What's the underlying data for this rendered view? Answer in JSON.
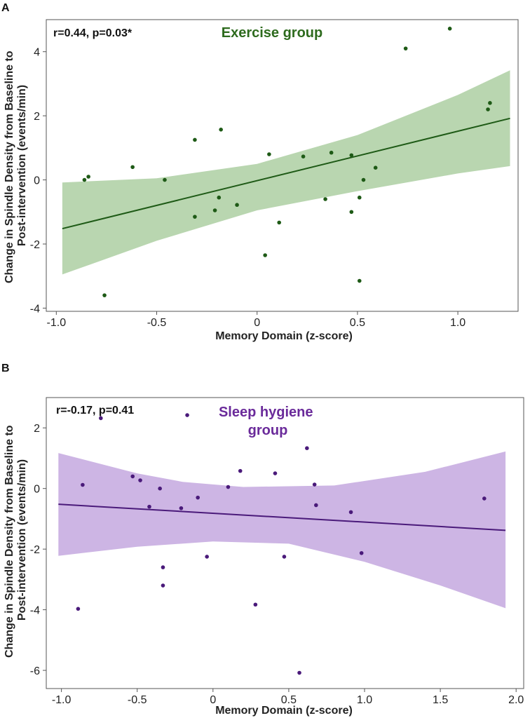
{
  "chart_data": [
    {
      "panel": "A",
      "type": "scatter",
      "title": "Exercise group",
      "stat_text": "r=0.44, p=0.03*",
      "xlabel": "Memory Domain (z-score)",
      "ylabel": "Change in Spindle Density from Baseline to Post-intervention (events/min)",
      "xlim": [
        -1.05,
        1.3
      ],
      "ylim": [
        -4.1,
        5.0
      ],
      "xticks": [
        -1.0,
        -0.5,
        0.0,
        0.5,
        1.0
      ],
      "xtick_labels": [
        "-1.0",
        "-0.5",
        "0",
        "0.5",
        "1.0"
      ],
      "yticks": [
        -4,
        -2,
        0,
        2,
        4
      ],
      "ytick_labels": [
        "-4",
        "-2",
        "0",
        "2",
        "4"
      ],
      "colors": {
        "point": "#1e5a16",
        "line": "#1e5a16",
        "band": "#b9d6b0",
        "title": "#2e6b1e"
      },
      "points": [
        {
          "x": -0.86,
          "y": 0.0
        },
        {
          "x": -0.84,
          "y": 0.1
        },
        {
          "x": -0.76,
          "y": -3.6
        },
        {
          "x": -0.62,
          "y": 0.4
        },
        {
          "x": -0.46,
          "y": 0.0
        },
        {
          "x": -0.31,
          "y": 1.25
        },
        {
          "x": -0.31,
          "y": -1.15
        },
        {
          "x": -0.21,
          "y": -0.95
        },
        {
          "x": -0.19,
          "y": -0.55
        },
        {
          "x": -0.18,
          "y": 1.57
        },
        {
          "x": -0.1,
          "y": -0.78
        },
        {
          "x": 0.04,
          "y": -2.35
        },
        {
          "x": 0.06,
          "y": 0.8
        },
        {
          "x": 0.11,
          "y": -1.33
        },
        {
          "x": 0.23,
          "y": 0.73
        },
        {
          "x": 0.34,
          "y": -0.6
        },
        {
          "x": 0.37,
          "y": 0.85
        },
        {
          "x": 0.47,
          "y": 0.77
        },
        {
          "x": 0.47,
          "y": -1.0
        },
        {
          "x": 0.51,
          "y": -0.55
        },
        {
          "x": 0.51,
          "y": -3.15
        },
        {
          "x": 0.53,
          "y": 0.0
        },
        {
          "x": 0.59,
          "y": 0.38
        },
        {
          "x": 0.74,
          "y": 4.1
        },
        {
          "x": 0.96,
          "y": 4.72
        },
        {
          "x": 1.15,
          "y": 2.2
        },
        {
          "x": 1.16,
          "y": 2.4
        }
      ],
      "fit_line": [
        {
          "x": -0.97,
          "y": -1.52
        },
        {
          "x": 1.26,
          "y": 1.92
        }
      ],
      "ci_upper": [
        {
          "x": -0.97,
          "y": -0.08
        },
        {
          "x": -0.5,
          "y": 0.05
        },
        {
          "x": 0.0,
          "y": 0.5
        },
        {
          "x": 0.5,
          "y": 1.4
        },
        {
          "x": 1.0,
          "y": 2.65
        },
        {
          "x": 1.26,
          "y": 3.42
        }
      ],
      "ci_lower": [
        {
          "x": 1.26,
          "y": 0.43
        },
        {
          "x": 1.0,
          "y": 0.2
        },
        {
          "x": 0.5,
          "y": -0.35
        },
        {
          "x": 0.0,
          "y": -0.95
        },
        {
          "x": -0.5,
          "y": -1.9
        },
        {
          "x": -0.97,
          "y": -2.95
        }
      ]
    },
    {
      "panel": "B",
      "type": "scatter",
      "title": "Sleep hygiene group",
      "title_lines": [
        "Sleep hygiene",
        "group"
      ],
      "stat_text": "r=-0.17, p=0.41",
      "xlabel": "Memory Domain (z-score)",
      "ylabel": "Change in Spindle Density from Baseline to Post-intervention (events/min)",
      "xlim": [
        -1.1,
        2.05
      ],
      "ylim": [
        -6.6,
        3.0
      ],
      "xticks": [
        -1.0,
        -0.5,
        0.0,
        0.5,
        1.0,
        1.5,
        2.0
      ],
      "xtick_labels": [
        "-1.0",
        "-0.5",
        "0",
        "0.5",
        "1.0",
        "1.5",
        "2.0"
      ],
      "yticks": [
        -6,
        -4,
        -2,
        0,
        2
      ],
      "ytick_labels": [
        "-6",
        "-4",
        "-2",
        "0",
        "2"
      ],
      "colors": {
        "point": "#4a1a7a",
        "line": "#4a1a7a",
        "band": "#cdb5e4",
        "title": "#6a2a9a"
      },
      "points": [
        {
          "x": -0.89,
          "y": -3.97
        },
        {
          "x": -0.86,
          "y": 0.12
        },
        {
          "x": -0.74,
          "y": 2.32
        },
        {
          "x": -0.53,
          "y": 0.4
        },
        {
          "x": -0.48,
          "y": 0.27
        },
        {
          "x": -0.42,
          "y": -0.6
        },
        {
          "x": -0.35,
          "y": 0.0
        },
        {
          "x": -0.33,
          "y": -2.6
        },
        {
          "x": -0.33,
          "y": -3.2
        },
        {
          "x": -0.21,
          "y": -0.65
        },
        {
          "x": -0.17,
          "y": 2.42
        },
        {
          "x": -0.1,
          "y": -0.3
        },
        {
          "x": -0.04,
          "y": -2.25
        },
        {
          "x": 0.1,
          "y": 0.05
        },
        {
          "x": 0.18,
          "y": 0.58
        },
        {
          "x": 0.28,
          "y": -3.83
        },
        {
          "x": 0.41,
          "y": 0.5
        },
        {
          "x": 0.47,
          "y": -2.25
        },
        {
          "x": 0.57,
          "y": -6.08
        },
        {
          "x": 0.62,
          "y": 1.33
        },
        {
          "x": 0.67,
          "y": 0.13
        },
        {
          "x": 0.68,
          "y": -0.55
        },
        {
          "x": 0.91,
          "y": -0.78
        },
        {
          "x": 0.98,
          "y": -2.13
        },
        {
          "x": 1.79,
          "y": -0.33
        }
      ],
      "fit_line": [
        {
          "x": -1.02,
          "y": -0.52
        },
        {
          "x": 1.93,
          "y": -1.38
        }
      ],
      "ci_upper": [
        {
          "x": -1.02,
          "y": 1.17
        },
        {
          "x": -0.5,
          "y": 0.5
        },
        {
          "x": -0.2,
          "y": 0.22
        },
        {
          "x": 0.2,
          "y": 0.05
        },
        {
          "x": 0.8,
          "y": 0.1
        },
        {
          "x": 1.4,
          "y": 0.55
        },
        {
          "x": 1.93,
          "y": 1.22
        }
      ],
      "ci_lower": [
        {
          "x": 1.93,
          "y": -3.95
        },
        {
          "x": 1.5,
          "y": -3.2
        },
        {
          "x": 1.0,
          "y": -2.42
        },
        {
          "x": 0.5,
          "y": -1.82
        },
        {
          "x": 0.0,
          "y": -1.75
        },
        {
          "x": -0.5,
          "y": -1.92
        },
        {
          "x": -1.02,
          "y": -2.22
        }
      ]
    }
  ]
}
